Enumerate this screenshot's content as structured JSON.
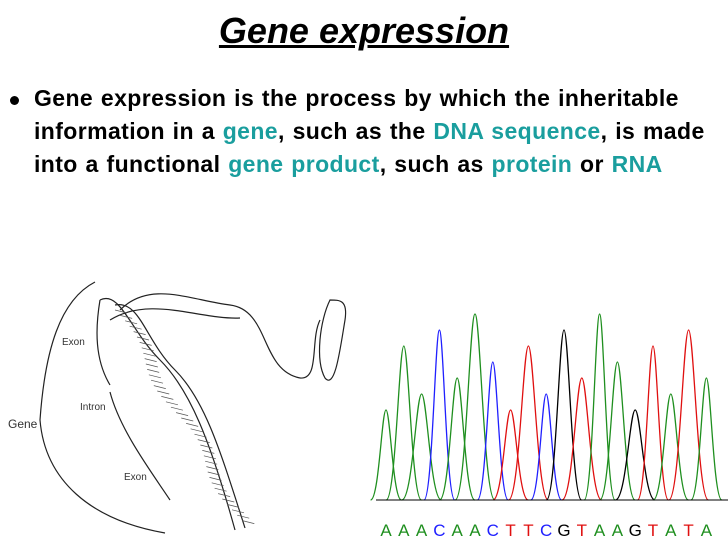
{
  "slide": {
    "title": "Gene expression",
    "bullet": [
      {
        "text": "Gene expression is the process by which the inheritable information in a ",
        "color": "#000000"
      },
      {
        "text": "gene",
        "color": "#1a9e9e"
      },
      {
        "text": ", such as the ",
        "color": "#000000"
      },
      {
        "text": "DNA sequence",
        "color": "#1a9e9e"
      },
      {
        "text": ", is made into a functional ",
        "color": "#000000"
      },
      {
        "text": "gene product",
        "color": "#1a9e9e"
      },
      {
        "text": ", such as ",
        "color": "#000000"
      },
      {
        "text": "protein",
        "color": "#1a9e9e"
      },
      {
        "text": " or ",
        "color": "#000000"
      },
      {
        "text": "RNA",
        "color": "#1a9e9e"
      }
    ],
    "figure": {
      "labels": [
        "Exon",
        "Intron",
        "Gene",
        "Exon"
      ]
    },
    "sequence": [
      {
        "base": "A",
        "color": "#1f8f1f"
      },
      {
        "base": "A",
        "color": "#1f8f1f"
      },
      {
        "base": "A",
        "color": "#1f8f1f"
      },
      {
        "base": "C",
        "color": "#2020ff"
      },
      {
        "base": "A",
        "color": "#1f8f1f"
      },
      {
        "base": "A",
        "color": "#1f8f1f"
      },
      {
        "base": "C",
        "color": "#2020ff"
      },
      {
        "base": "T",
        "color": "#e01010"
      },
      {
        "base": "T",
        "color": "#e01010"
      },
      {
        "base": "C",
        "color": "#2020ff"
      },
      {
        "base": "G",
        "color": "#000000"
      },
      {
        "base": "T",
        "color": "#e01010"
      },
      {
        "base": "A",
        "color": "#1f8f1f"
      },
      {
        "base": "A",
        "color": "#1f8f1f"
      },
      {
        "base": "G",
        "color": "#000000"
      },
      {
        "base": "T",
        "color": "#e01010"
      },
      {
        "base": "A",
        "color": "#1f8f1f"
      },
      {
        "base": "T",
        "color": "#e01010"
      },
      {
        "base": "A",
        "color": "#1f8f1f"
      }
    ]
  }
}
